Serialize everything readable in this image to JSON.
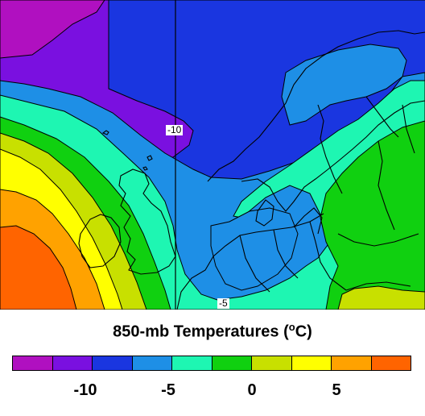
{
  "map": {
    "title_main": "850-mb Temperatures (",
    "title_degree": "o",
    "title_unit": "C)",
    "contour_labels": [
      "-10",
      "-5"
    ]
  },
  "colorbar": {
    "colors": [
      "#b010c0",
      "#7a10e0",
      "#1a36e0",
      "#1e8fe6",
      "#1ef6b2",
      "#10d010",
      "#c8e000",
      "#ffff00",
      "#ffa200",
      "#ff6400"
    ],
    "tick_labels": [
      "-10",
      "-5",
      "0",
      "5"
    ]
  }
}
